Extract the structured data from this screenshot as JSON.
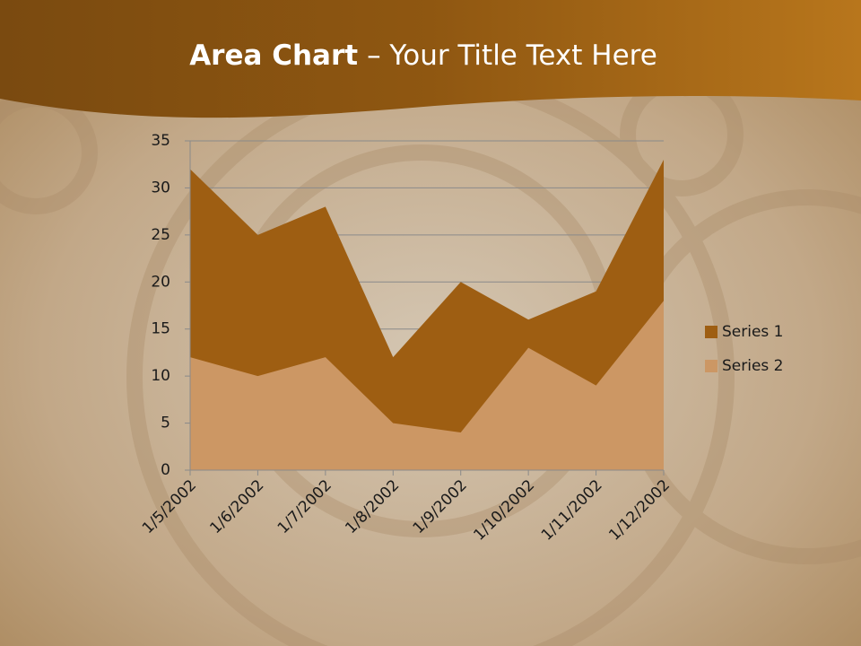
{
  "chart_data": {
    "type": "area",
    "title": "Area Chart",
    "subtitle": "– Your Title Text Here",
    "categories": [
      "1/5/2002",
      "1/6/2002",
      "1/7/2002",
      "1/8/2002",
      "1/9/2002",
      "1/10/2002",
      "1/11/2002",
      "1/12/2002"
    ],
    "series": [
      {
        "name": "Series 1",
        "color": "#9e5e12",
        "values": [
          32,
          25,
          28,
          12,
          20,
          16,
          19,
          33
        ]
      },
      {
        "name": "Series 2",
        "color": "#cc9764",
        "values": [
          12,
          10,
          12,
          5,
          4,
          13,
          9,
          18
        ]
      }
    ],
    "ylim": [
      0,
      35
    ],
    "yticks": [
      0,
      5,
      10,
      15,
      20,
      25,
      30,
      35
    ],
    "grid": true,
    "legend": "right"
  }
}
